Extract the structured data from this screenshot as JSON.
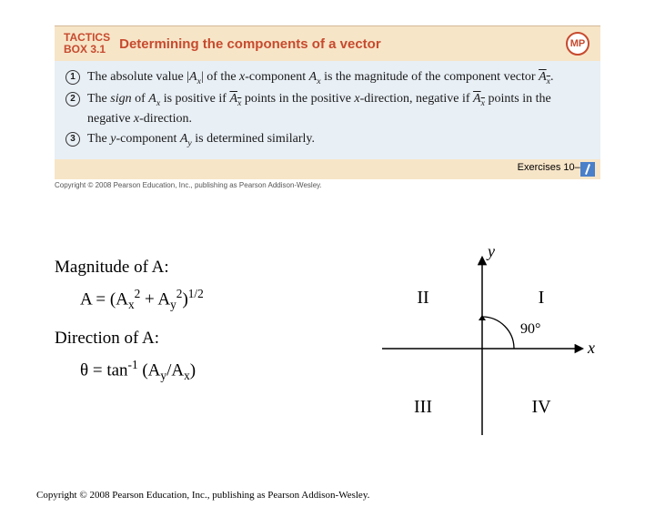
{
  "tactics": {
    "label_line1": "TACTICS",
    "label_line2": "BOX 3.1",
    "title": "Determining the components of a vector",
    "badge": "MP",
    "items": [
      {
        "n": "1",
        "html": "The absolute value |<span class='ital'>A<sub>x</sub></span>| of the <span class='ital'>x</span>-component <span class='ital'>A<sub>x</sub></span> is the magnitude of the component vector <span class='ital vecbar'>A<sub>x</sub></span>."
      },
      {
        "n": "2",
        "html": "The <span class='ital'>sign</span> of <span class='ital'>A<sub>x</sub></span> is positive if <span class='ital vecbar'>A<sub>x</sub></span> points in the positive <span class='ital'>x</span>-direction, negative if <span class='ital vecbar'>A<sub>x</sub></span> points in the negative <span class='ital'>x</span>-direction."
      },
      {
        "n": "3",
        "html": "The <span class='ital'>y</span>-component <span class='ital'>A<sub>y</sub></span> is determined similarly."
      }
    ],
    "footer": "Exercises 10–18",
    "img_copyright": "Copyright © 2008 Pearson Education, Inc., publishing as Pearson Addison-Wesley."
  },
  "formulas": {
    "mag_label": "Magnitude of A:",
    "mag_eq_html": "A = (A<sub>x</sub><sup>2</sup> + A<sub>y</sub><sup>2</sup>)<sup>1/2</sup>",
    "dir_label": "Direction of A:",
    "dir_eq_html": "θ = tan<sup>-1</sup> (A<sub>y</sub>/A<sub>x</sub>)"
  },
  "diagram": {
    "y_label": "y",
    "x_label": "x",
    "q1": "I",
    "q2": "II",
    "q3": "III",
    "q4": "IV",
    "angle_label": "90°",
    "axis_color": "#000000",
    "arc_color": "#000000",
    "font_family": "Times New Roman",
    "label_fontsize": 18
  },
  "page_copyright": "Copyright © 2008 Pearson Education, Inc., publishing as Pearson Addison-Wesley."
}
